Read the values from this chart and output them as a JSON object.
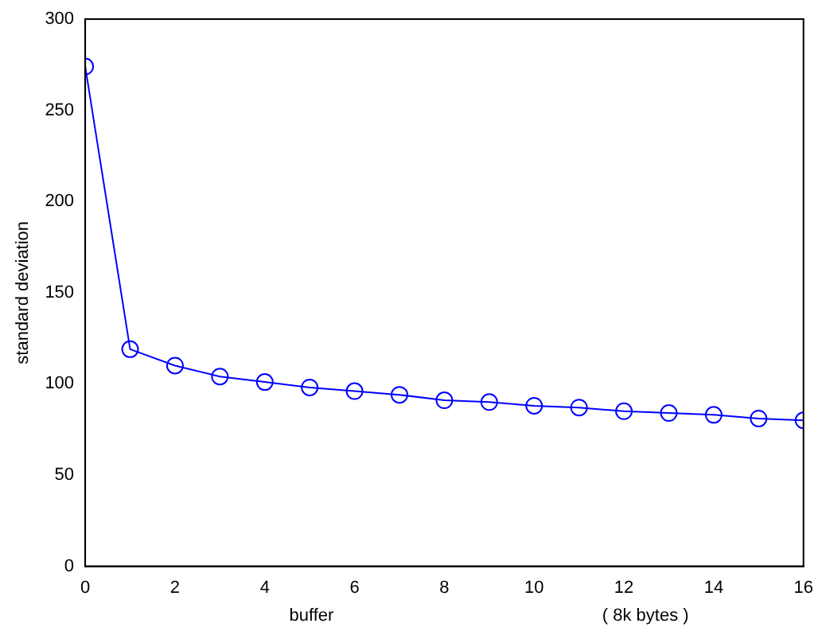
{
  "chart_data": {
    "type": "line",
    "xlabel": "buffer",
    "ylabel": "standard deviation",
    "annotations": [
      "( 8k bytes )"
    ],
    "x": [
      0,
      1,
      2,
      3,
      4,
      5,
      6,
      7,
      8,
      9,
      10,
      11,
      12,
      13,
      14,
      15,
      16
    ],
    "series": [
      {
        "color": "#0000ff",
        "values": [
          274,
          119,
          110,
          104,
          101,
          98,
          96,
          94,
          91,
          90,
          88,
          87,
          85,
          84,
          83,
          81,
          80
        ]
      }
    ],
    "xlim": [
      0,
      16
    ],
    "xticks": [
      0,
      2,
      4,
      6,
      8,
      10,
      12,
      14,
      16
    ],
    "ylim": [
      0,
      300
    ],
    "yticks": [
      0,
      50,
      100,
      150,
      200,
      250,
      300
    ],
    "grid": false,
    "legend": false,
    "marker": "circle",
    "line_style": "solid"
  }
}
